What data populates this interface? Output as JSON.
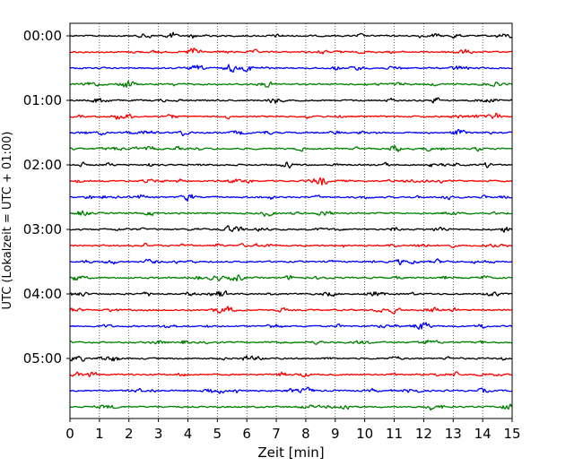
{
  "chart_data": {
    "type": "line",
    "title": "",
    "xlabel": "Zeit  [min]",
    "ylabel": "UTC (Lokalzeit = UTC + 01:00)",
    "xlim": [
      0,
      15
    ],
    "x_ticks": [
      "0",
      "1",
      "2",
      "3",
      "4",
      "5",
      "6",
      "7",
      "8",
      "9",
      "10",
      "11",
      "12",
      "13",
      "14",
      "15"
    ],
    "y_tick_labels": [
      "00:00",
      "01:00",
      "02:00",
      "03:00",
      "04:00",
      "05:00"
    ],
    "trace_interval_min": 15,
    "trace_count": 24,
    "trace_colors": [
      "#000000",
      "#ff0000",
      "#0000ff",
      "#008000"
    ],
    "grid": "vertical dotted lines at each minute",
    "legend": "none"
  }
}
